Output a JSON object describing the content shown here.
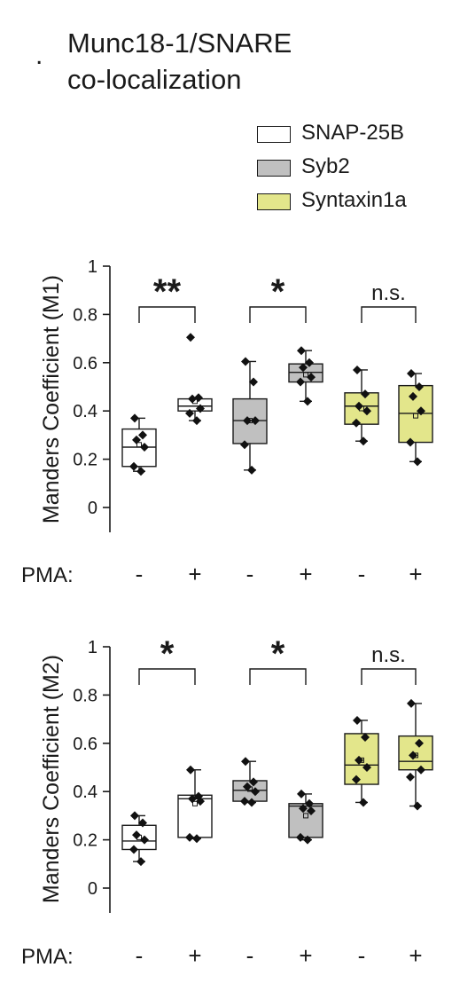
{
  "panel_letter": ".",
  "title_line1": "Munc18-1/SNARE",
  "title_line2": "co-localization",
  "legend": [
    {
      "label": "SNAP-25B",
      "color": "#ffffff"
    },
    {
      "label": "Syb2",
      "color": "#c0c0c0"
    },
    {
      "label": "Syntaxin1a",
      "color": "#e3e68b"
    }
  ],
  "pma_label": "PMA:",
  "pma_values": [
    "-",
    "+",
    "-",
    "+",
    "-",
    "+"
  ],
  "chart_data": [
    {
      "type": "box",
      "ylabel": "Manders Coefficient (M1)",
      "ylim": [
        0,
        1
      ],
      "yticks": [
        "0",
        "0.2",
        "0.4",
        "0.6",
        "0.8",
        "1"
      ],
      "groups": [
        {
          "series": "SNAP-25B",
          "pma": "-",
          "whisker_low": 0.15,
          "q1": 0.17,
          "median": 0.25,
          "mean": 0.26,
          "q3": 0.325,
          "whisker_high": 0.37,
          "points": [
            0.37,
            0.3,
            0.28,
            0.25,
            0.17,
            0.15
          ]
        },
        {
          "series": "SNAP-25B",
          "pma": "+",
          "whisker_low": 0.36,
          "q1": 0.4,
          "median": 0.42,
          "mean": 0.44,
          "q3": 0.45,
          "whisker_high": 0.45,
          "points": [
            0.705,
            0.455,
            0.45,
            0.41,
            0.39,
            0.36
          ]
        },
        {
          "series": "Syb2",
          "pma": "-",
          "whisker_low": 0.155,
          "q1": 0.265,
          "median": 0.36,
          "mean": 0.36,
          "q3": 0.45,
          "whisker_high": 0.605,
          "points": [
            0.605,
            0.52,
            0.36,
            0.36,
            0.26,
            0.155
          ]
        },
        {
          "series": "Syb2",
          "pma": "+",
          "whisker_low": 0.44,
          "q1": 0.52,
          "median": 0.56,
          "mean": 0.55,
          "q3": 0.595,
          "whisker_high": 0.65,
          "points": [
            0.65,
            0.6,
            0.58,
            0.54,
            0.52,
            0.44
          ]
        },
        {
          "series": "Syntaxin1a",
          "pma": "-",
          "whisker_low": 0.275,
          "q1": 0.345,
          "median": 0.42,
          "mean": 0.41,
          "q3": 0.475,
          "whisker_high": 0.57,
          "points": [
            0.57,
            0.47,
            0.42,
            0.4,
            0.35,
            0.275
          ]
        },
        {
          "series": "Syntaxin1a",
          "pma": "+",
          "whisker_low": 0.19,
          "q1": 0.27,
          "median": 0.39,
          "mean": 0.38,
          "q3": 0.505,
          "whisker_high": 0.555,
          "points": [
            0.555,
            0.5,
            0.46,
            0.4,
            0.27,
            0.19
          ]
        }
      ],
      "significance": [
        "**",
        "*",
        "n.s."
      ]
    },
    {
      "type": "box",
      "ylabel": "Manders Coefficient (M2)",
      "ylim": [
        0,
        1
      ],
      "yticks": [
        "0",
        "0.2",
        "0.4",
        "0.6",
        "0.8",
        "1"
      ],
      "groups": [
        {
          "series": "SNAP-25B",
          "pma": "-",
          "whisker_low": 0.11,
          "q1": 0.16,
          "median": 0.195,
          "mean": 0.21,
          "q3": 0.26,
          "whisker_high": 0.3,
          "points": [
            0.3,
            0.27,
            0.22,
            0.2,
            0.16,
            0.11
          ]
        },
        {
          "series": "SNAP-25B",
          "pma": "+",
          "whisker_low": 0.205,
          "q1": 0.21,
          "median": 0.37,
          "mean": 0.35,
          "q3": 0.385,
          "whisker_high": 0.49,
          "points": [
            0.49,
            0.38,
            0.37,
            0.36,
            0.21,
            0.205
          ]
        },
        {
          "series": "Syb2",
          "pma": "-",
          "whisker_low": 0.355,
          "q1": 0.36,
          "median": 0.405,
          "mean": 0.41,
          "q3": 0.445,
          "whisker_high": 0.525,
          "points": [
            0.525,
            0.44,
            0.42,
            0.4,
            0.36,
            0.355
          ]
        },
        {
          "series": "Syb2",
          "pma": "+",
          "whisker_low": 0.2,
          "q1": 0.21,
          "median": 0.34,
          "mean": 0.3,
          "q3": 0.35,
          "whisker_high": 0.39,
          "points": [
            0.39,
            0.35,
            0.33,
            0.32,
            0.21,
            0.2
          ]
        },
        {
          "series": "Syntaxin1a",
          "pma": "-",
          "whisker_low": 0.355,
          "q1": 0.43,
          "median": 0.51,
          "mean": 0.53,
          "q3": 0.64,
          "whisker_high": 0.695,
          "points": [
            0.695,
            0.625,
            0.53,
            0.5,
            0.45,
            0.355
          ]
        },
        {
          "series": "Syntaxin1a",
          "pma": "+",
          "whisker_low": 0.34,
          "q1": 0.49,
          "median": 0.525,
          "mean": 0.55,
          "q3": 0.63,
          "whisker_high": 0.765,
          "points": [
            0.765,
            0.6,
            0.55,
            0.49,
            0.46,
            0.34
          ]
        }
      ],
      "significance": [
        "*",
        "*",
        "n.s."
      ]
    }
  ]
}
